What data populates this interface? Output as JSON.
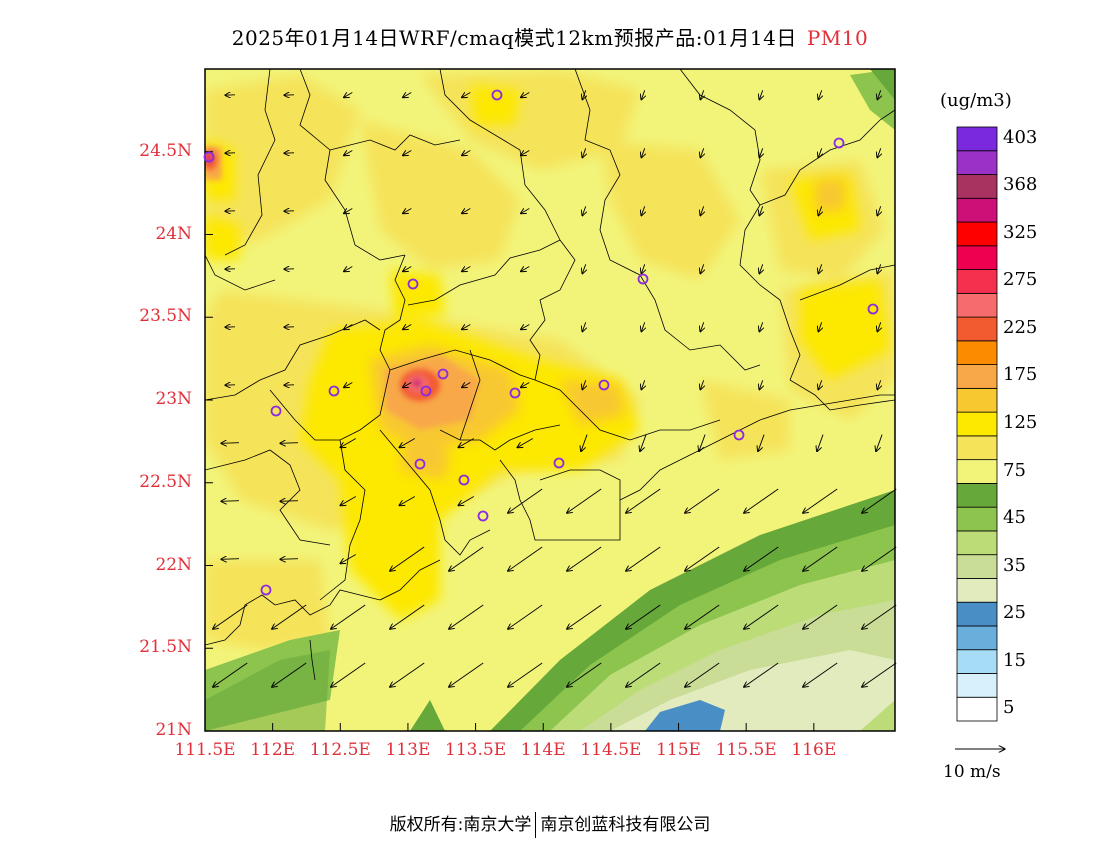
{
  "title": {
    "main": "2025年01月14日WRF/cmaq模式12km预报产品:01月14日",
    "pollutant": "PM10"
  },
  "axes": {
    "lat_ticks": [
      "24.5N",
      "24N",
      "23.5N",
      "23N",
      "22.5N",
      "22N",
      "21.5N",
      "21N"
    ],
    "lon_ticks": [
      "111.5E",
      "112E",
      "112.5E",
      "113E",
      "113.5E",
      "114E",
      "114.5E",
      "115E",
      "115.5E",
      "116E"
    ],
    "lat_values": [
      24.5,
      24.0,
      23.5,
      23.0,
      22.5,
      22.0,
      21.5,
      21.0
    ],
    "lon_values": [
      111.5,
      112.0,
      112.5,
      113.0,
      113.5,
      114.0,
      114.5,
      115.0,
      115.5,
      116.0
    ],
    "lat_range": [
      21.0,
      25.0
    ],
    "lon_range": [
      111.5,
      116.6
    ]
  },
  "colorbar": {
    "unit": "(ug/m3)",
    "colors": [
      "#ffffff",
      "#d7f0fb",
      "#a6dcf5",
      "#6aaedc",
      "#4a8ec6",
      "#e2ebbd",
      "#c9dd97",
      "#bcdc78",
      "#8cc44e",
      "#66a83a",
      "#f2f47a",
      "#f5e35a",
      "#fde800",
      "#f8c830",
      "#f8a848",
      "#fb8c00",
      "#f25a30",
      "#f66c6c",
      "#f5304f",
      "#ee0050",
      "#ff0000",
      "#cc1077",
      "#a83260",
      "#9a32c8",
      "#7a2adc"
    ],
    "labels": [
      "5",
      "15",
      "25",
      "35",
      "45",
      "75",
      "125",
      "175",
      "225",
      "275",
      "325",
      "368",
      "403"
    ]
  },
  "markers_ring_color": "#8a2be2",
  "wind": {
    "legend_label": "10 m/s"
  },
  "footer": {
    "left": "版权所有:南京大学",
    "right": "南京创蓝科技有限公司"
  }
}
